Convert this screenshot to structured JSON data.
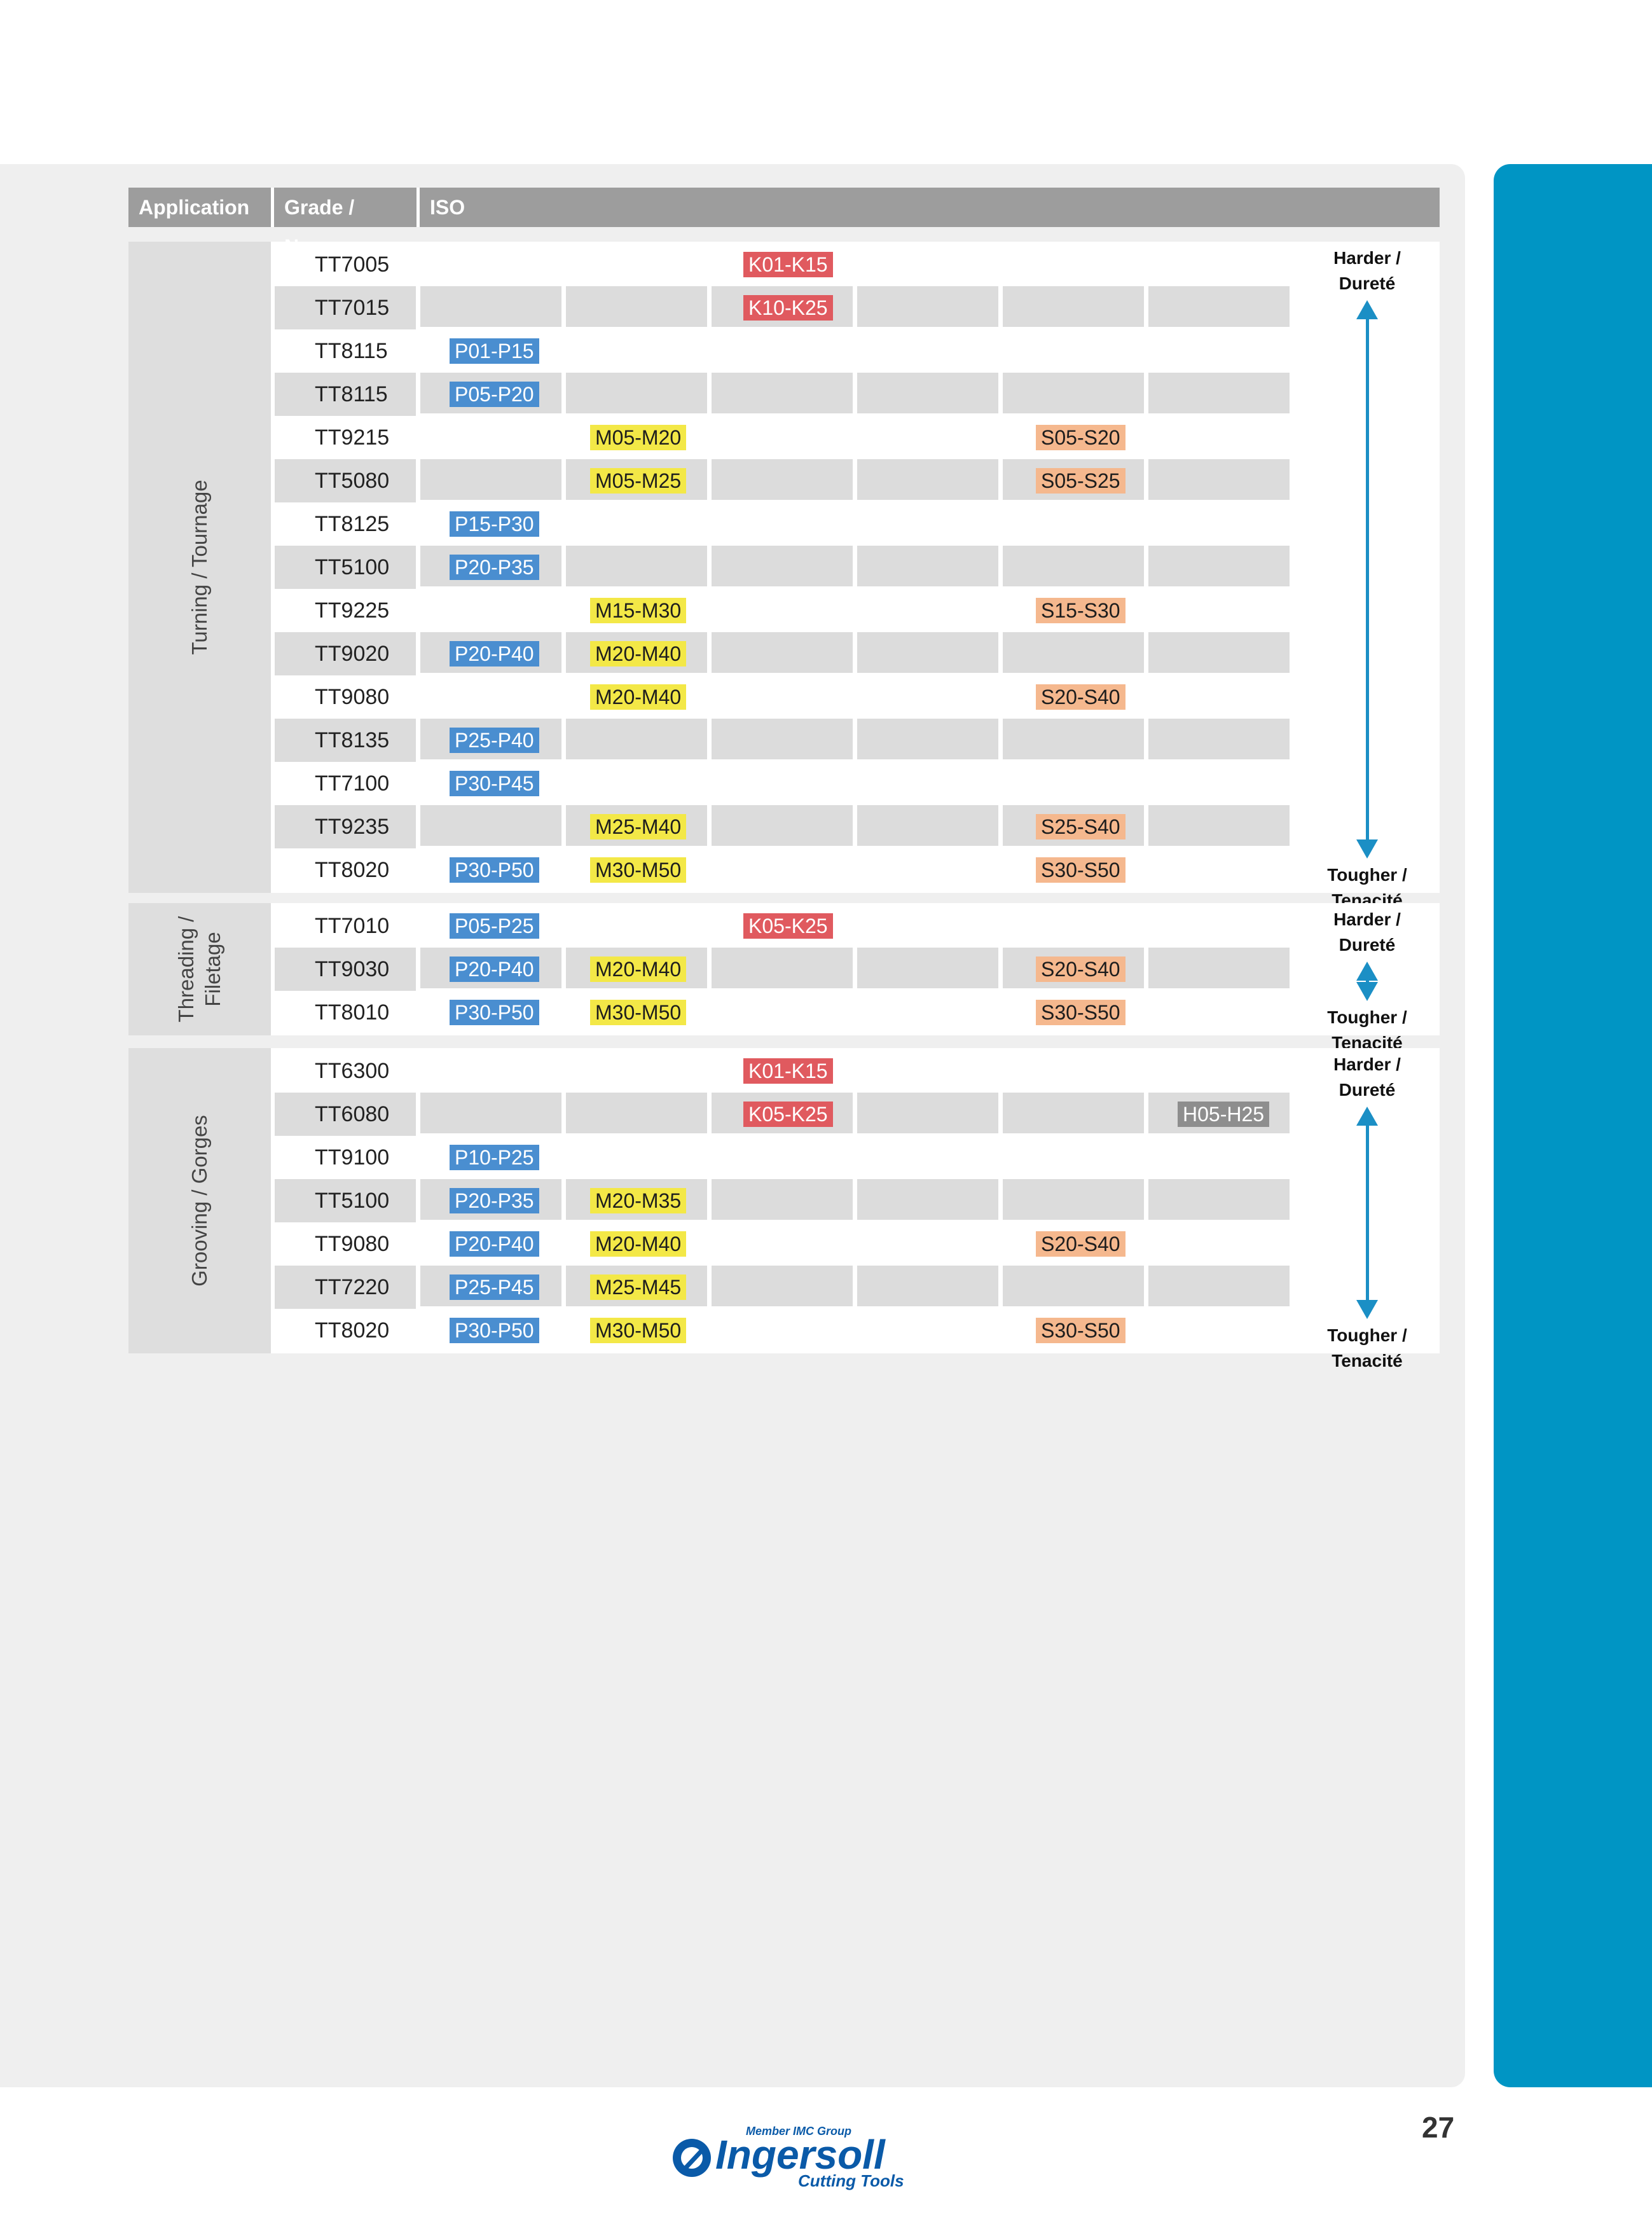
{
  "header": {
    "application": "Application",
    "grade": "Grade / Nuance",
    "iso": "ISO"
  },
  "sections": [
    {
      "label_lines": [
        "Turning / Tournage"
      ],
      "arrow": {
        "top_lines": [
          "Harder /",
          "Dureté"
        ],
        "bottom_lines": [
          "Tougher / Tenacité"
        ]
      },
      "rows": [
        {
          "grade": "TT7005",
          "P": "",
          "M": "",
          "K": "K01-K15",
          "N": "",
          "S": "",
          "H": ""
        },
        {
          "grade": "TT7015",
          "P": "",
          "M": "",
          "K": "K10-K25",
          "N": "",
          "S": "",
          "H": ""
        },
        {
          "grade": "TT8115",
          "P": "P01-P15",
          "M": "",
          "K": "",
          "N": "",
          "S": "",
          "H": ""
        },
        {
          "grade": "TT8115",
          "P": "P05-P20",
          "M": "",
          "K": "",
          "N": "",
          "S": "",
          "H": ""
        },
        {
          "grade": "TT9215",
          "P": "",
          "M": "M05-M20",
          "K": "",
          "N": "",
          "S": "S05-S20",
          "H": ""
        },
        {
          "grade": "TT5080",
          "P": "",
          "M": "M05-M25",
          "K": "",
          "N": "",
          "S": "S05-S25",
          "H": ""
        },
        {
          "grade": "TT8125",
          "P": "P15-P30",
          "M": "",
          "K": "",
          "N": "",
          "S": "",
          "H": ""
        },
        {
          "grade": "TT5100",
          "P": "P20-P35",
          "M": "",
          "K": "",
          "N": "",
          "S": "",
          "H": ""
        },
        {
          "grade": "TT9225",
          "P": "",
          "M": "M15-M30",
          "K": "",
          "N": "",
          "S": "S15-S30",
          "H": ""
        },
        {
          "grade": "TT9020",
          "P": "P20-P40",
          "M": "M20-M40",
          "K": "",
          "N": "",
          "S": "",
          "H": ""
        },
        {
          "grade": "TT9080",
          "P": "",
          "M": "M20-M40",
          "K": "",
          "N": "",
          "S": "S20-S40",
          "H": ""
        },
        {
          "grade": "TT8135",
          "P": "P25-P40",
          "M": "",
          "K": "",
          "N": "",
          "S": "",
          "H": ""
        },
        {
          "grade": "TT7100",
          "P": "P30-P45",
          "M": "",
          "K": "",
          "N": "",
          "S": "",
          "H": ""
        },
        {
          "grade": "TT9235",
          "P": "",
          "M": "M25-M40",
          "K": "",
          "N": "",
          "S": "S25-S40",
          "H": ""
        },
        {
          "grade": "TT8020",
          "P": "P30-P50",
          "M": "M30-M50",
          "K": "",
          "N": "",
          "S": "S30-S50",
          "H": ""
        }
      ]
    },
    {
      "label_lines": [
        "Threading /",
        "Filetage"
      ],
      "arrow": {
        "top_lines": [
          "Harder /",
          "Dureté"
        ],
        "bottom_lines": [
          "Tougher / Tenacité"
        ]
      },
      "rows": [
        {
          "grade": "TT7010",
          "P": "P05-P25",
          "M": "",
          "K": "K05-K25",
          "N": "",
          "S": "",
          "H": ""
        },
        {
          "grade": "TT9030",
          "P": "P20-P40",
          "M": "M20-M40",
          "K": "",
          "N": "",
          "S": "S20-S40",
          "H": ""
        },
        {
          "grade": "TT8010",
          "P": "P30-P50",
          "M": "M30-M50",
          "K": "",
          "N": "",
          "S": "S30-S50",
          "H": ""
        }
      ]
    },
    {
      "label_lines": [
        "Grooving / Gorges"
      ],
      "arrow": {
        "top_lines": [
          "Harder /",
          "Dureté"
        ],
        "bottom_lines": [
          "Tougher / Tenacité"
        ]
      },
      "rows": [
        {
          "grade": "TT6300",
          "P": "",
          "M": "",
          "K": "K01-K15",
          "N": "",
          "S": "",
          "H": ""
        },
        {
          "grade": "TT6080",
          "P": "",
          "M": "",
          "K": "K05-K25",
          "N": "",
          "S": "",
          "H": "H05-H25"
        },
        {
          "grade": "TT9100",
          "P": "P10-P25",
          "M": "",
          "K": "",
          "N": "",
          "S": "",
          "H": ""
        },
        {
          "grade": "TT5100",
          "P": "P20-P35",
          "M": "M20-M35",
          "K": "",
          "N": "",
          "S": "",
          "H": ""
        },
        {
          "grade": "TT9080",
          "P": "P20-P40",
          "M": "M20-M40",
          "K": "",
          "N": "",
          "S": "S20-S40",
          "H": ""
        },
        {
          "grade": "TT7220",
          "P": "P25-P45",
          "M": "M25-M45",
          "K": "",
          "N": "",
          "S": "",
          "H": ""
        },
        {
          "grade": "TT8020",
          "P": "P30-P50",
          "M": "M30-M50",
          "K": "",
          "N": "",
          "S": "S30-S50",
          "H": ""
        }
      ]
    }
  ],
  "footer": {
    "page_number": "27",
    "logo_member": "Member IMC Group",
    "logo_brand": "Ingersoll",
    "logo_sub": "Cutting Tools"
  },
  "colors": {
    "accent": "#0095c4",
    "P": "#4a8ed0",
    "M": "#f3e847",
    "K": "#e05a5f",
    "S": "#f5b88e",
    "H": "#8e8e8e"
  }
}
